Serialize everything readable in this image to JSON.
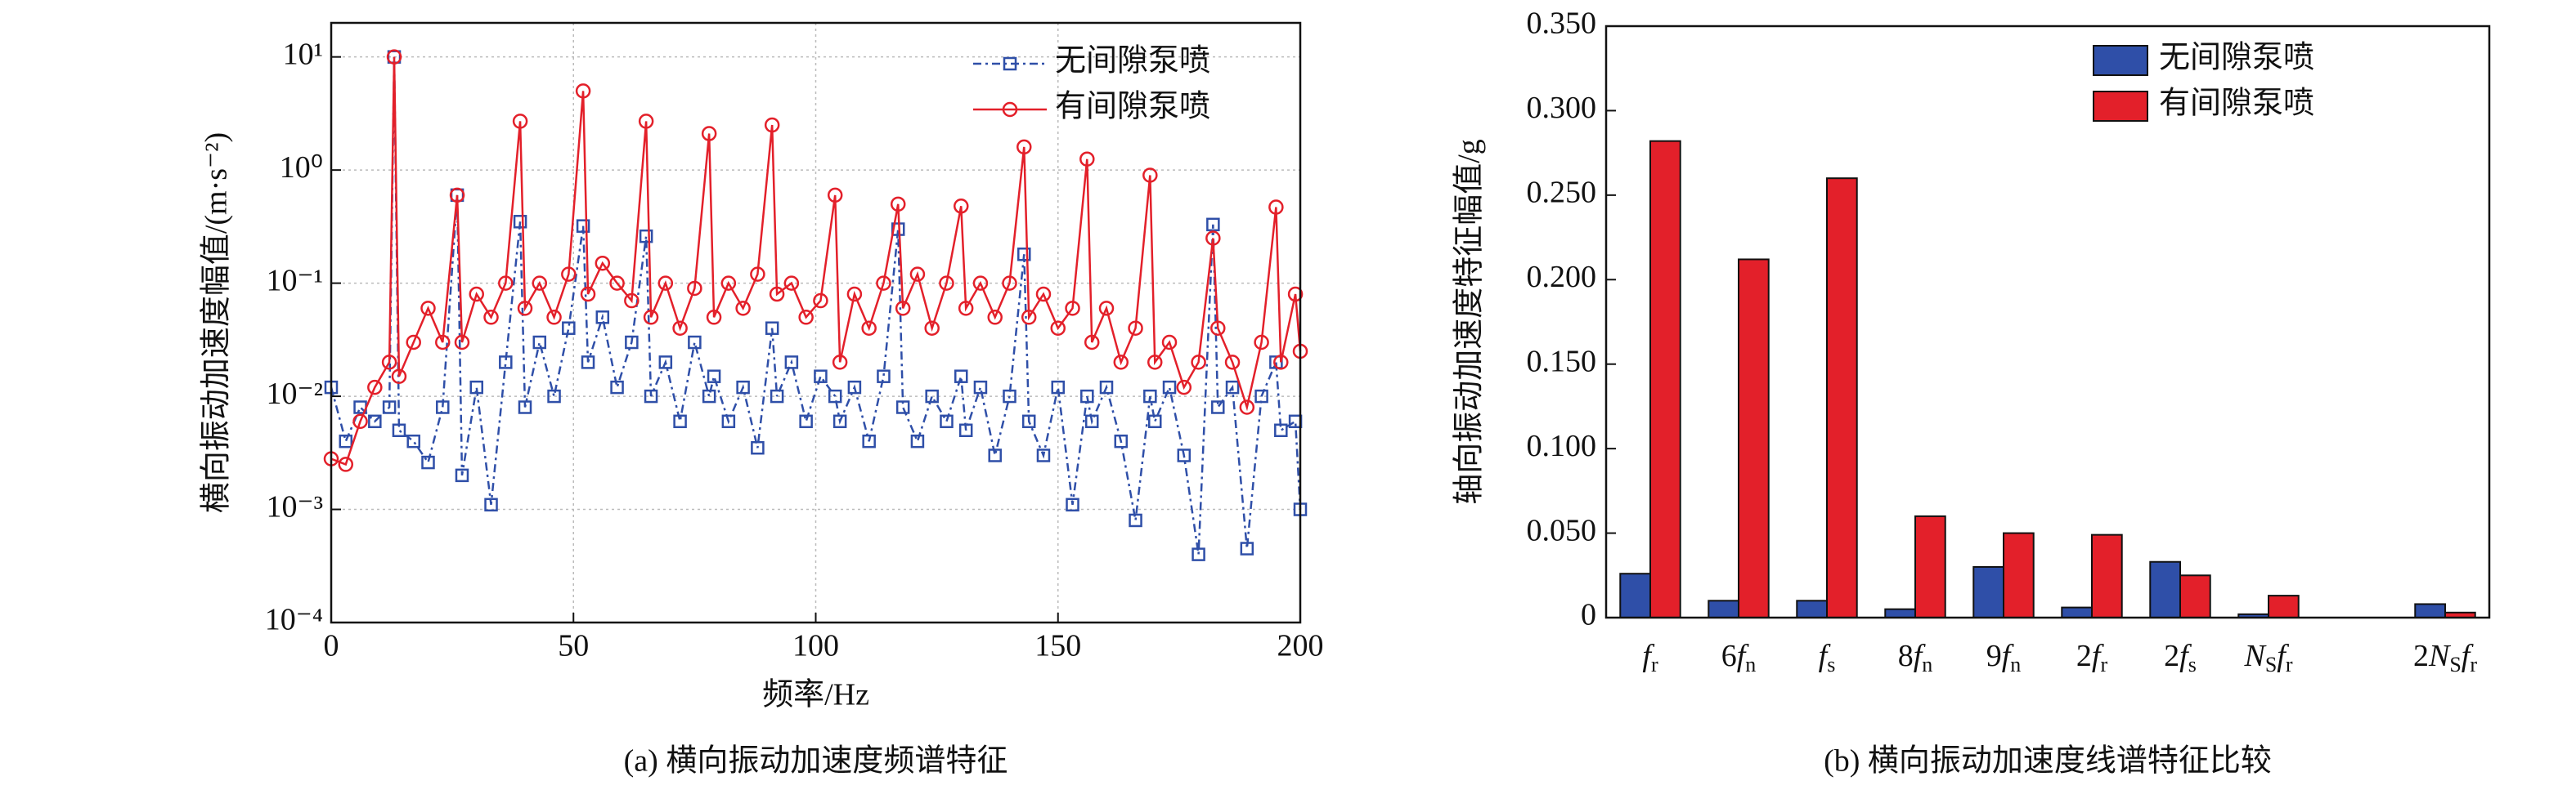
{
  "chart_data": [
    {
      "type": "line",
      "yscale": "log",
      "grid": true,
      "legend": "upper right",
      "xlabel": "频率/Hz",
      "ylabel": "横向振动加速度幅值/(m·s⁻²)",
      "caption": "(a) 横向振动加速度频谱特征",
      "xlim": [
        0,
        200
      ],
      "xticks": [
        0,
        50,
        100,
        150,
        200
      ],
      "ylim": [
        0.0001,
        20
      ],
      "yticks": [
        {
          "value": 0.0001,
          "label": "10⁻⁴"
        },
        {
          "value": 0.001,
          "label": "10⁻³"
        },
        {
          "value": 0.01,
          "label": "10⁻²"
        },
        {
          "value": 0.1,
          "label": "10⁻¹"
        },
        {
          "value": 1,
          "label": "10⁰"
        },
        {
          "value": 10,
          "label": "10¹"
        }
      ],
      "x": [
        0,
        3,
        6,
        9,
        12,
        13,
        14,
        17,
        20,
        23,
        26,
        27,
        30,
        33,
        36,
        39,
        40,
        43,
        46,
        49,
        52,
        53,
        56,
        59,
        62,
        65,
        66,
        69,
        72,
        75,
        78,
        79,
        82,
        85,
        88,
        91,
        92,
        95,
        98,
        101,
        104,
        105,
        108,
        111,
        114,
        117,
        118,
        121,
        124,
        127,
        130,
        131,
        134,
        137,
        140,
        143,
        144,
        147,
        150,
        153,
        156,
        157,
        160,
        163,
        166,
        169,
        170,
        173,
        176,
        179,
        182,
        183,
        186,
        189,
        192,
        195,
        196,
        199,
        200
      ],
      "series": [
        {
          "name": "无间隙泵喷",
          "color": "#2f4fa8",
          "marker": "square",
          "linestyle": "dashdot",
          "values": [
            0.012,
            0.004,
            0.008,
            0.006,
            0.008,
            10,
            0.005,
            0.004,
            0.0026,
            0.008,
            0.6,
            0.002,
            0.012,
            0.0011,
            0.02,
            0.35,
            0.008,
            0.03,
            0.01,
            0.04,
            0.32,
            0.02,
            0.05,
            0.012,
            0.03,
            0.26,
            0.01,
            0.02,
            0.006,
            0.03,
            0.01,
            0.015,
            0.006,
            0.012,
            0.0035,
            0.04,
            0.01,
            0.02,
            0.006,
            0.015,
            0.01,
            0.006,
            0.012,
            0.004,
            0.015,
            0.3,
            0.008,
            0.004,
            0.01,
            0.006,
            0.015,
            0.005,
            0.012,
            0.003,
            0.01,
            0.18,
            0.006,
            0.003,
            0.012,
            0.0011,
            0.01,
            0.006,
            0.012,
            0.004,
            0.0008,
            0.01,
            0.006,
            0.012,
            0.003,
            0.0004,
            0.33,
            0.008,
            0.012,
            0.00045,
            0.01,
            0.02,
            0.005,
            0.006,
            0.001
          ]
        },
        {
          "name": "有间隙泵喷",
          "color": "#e3202a",
          "marker": "circle",
          "linestyle": "solid",
          "values": [
            0.0028,
            0.0025,
            0.006,
            0.012,
            0.02,
            10,
            0.015,
            0.03,
            0.06,
            0.03,
            0.6,
            0.03,
            0.08,
            0.05,
            0.1,
            2.7,
            0.06,
            0.1,
            0.05,
            0.12,
            5,
            0.08,
            0.15,
            0.1,
            0.07,
            2.7,
            0.05,
            0.1,
            0.04,
            0.09,
            2.1,
            0.05,
            0.1,
            0.06,
            0.12,
            2.5,
            0.08,
            0.1,
            0.05,
            0.07,
            0.6,
            0.02,
            0.08,
            0.04,
            0.1,
            0.5,
            0.06,
            0.12,
            0.04,
            0.1,
            0.48,
            0.06,
            0.1,
            0.05,
            0.1,
            1.6,
            0.05,
            0.08,
            0.04,
            0.06,
            1.25,
            0.03,
            0.06,
            0.02,
            0.04,
            0.9,
            0.02,
            0.03,
            0.012,
            0.02,
            0.25,
            0.04,
            0.02,
            0.008,
            0.03,
            0.47,
            0.02,
            0.08,
            0.025
          ]
        }
      ]
    },
    {
      "type": "bar",
      "legend": "upper right",
      "ylabel": "轴向振动加速度特征幅值/g",
      "caption": "(b) 横向振动加速度线谱特征比较",
      "categories": [
        "fr",
        "6fn",
        "fs",
        "8fn",
        "9fn",
        "2fr",
        "2fs",
        "NSfr",
        null,
        "2NSfr"
      ],
      "ylim": [
        0,
        0.35
      ],
      "yticks": [
        0,
        {
          "value": 0.05,
          "label": "0.050"
        },
        {
          "value": 0.1,
          "label": "0.100"
        },
        {
          "value": 0.15,
          "label": "0.150"
        },
        {
          "value": 0.2,
          "label": "0.200"
        },
        {
          "value": 0.25,
          "label": "0.250"
        },
        {
          "value": 0.3,
          "label": "0.300"
        },
        {
          "value": 0.35,
          "label": "0.350"
        }
      ],
      "series": [
        {
          "name": "无间隙泵喷",
          "color": "#2f4fa8",
          "values": [
            0.026,
            0.01,
            0.01,
            0.005,
            0.03,
            0.006,
            0.033,
            0.002,
            null,
            0.008
          ]
        },
        {
          "name": "有间隙泵喷",
          "color": "#e3202a",
          "values": [
            0.282,
            0.212,
            0.26,
            0.06,
            0.05,
            0.049,
            0.025,
            0.013,
            null,
            0.003
          ]
        }
      ]
    }
  ]
}
